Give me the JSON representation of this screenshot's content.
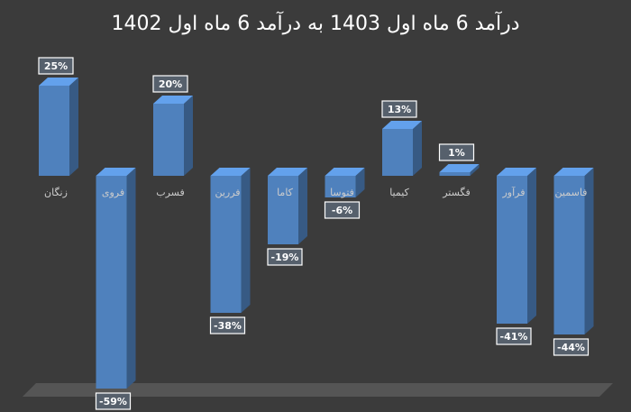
{
  "chart_data": {
    "type": "bar3d",
    "title": "درآمد 6 ماه اول 1403 به درآمد 6 ماه اول 1402",
    "categories": [
      "زنگان",
      "فروی",
      "فسرب",
      "فررین",
      "کاما",
      "فتوسا",
      "کیمیا",
      "فگستر",
      "فرآور",
      "فاسمین"
    ],
    "values": [
      25,
      -59,
      20,
      -38,
      -19,
      -6,
      13,
      1,
      -41,
      -44
    ],
    "value_labels": [
      "25%",
      "-59%",
      "20%",
      "-38%",
      "-19%",
      "-6%",
      "13%",
      "1%",
      "-41%",
      "-44%"
    ],
    "color": "#4f81bd"
  }
}
